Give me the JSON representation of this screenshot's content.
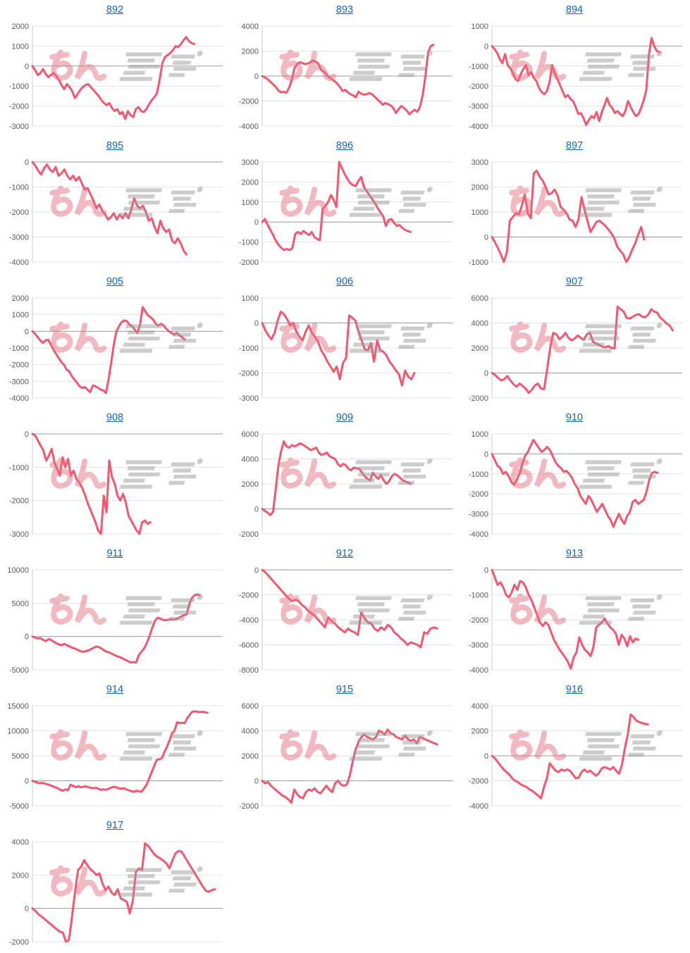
{
  "page": {
    "background": "#ffffff"
  },
  "watermark": {
    "text": "みんレポ",
    "pink_color": "#e57382",
    "gray_color": "#9b9b9b"
  },
  "styles": {
    "line_color": "#f3566e",
    "title_color": "#0e63ce",
    "grid_color": "#e2e2e2",
    "zero_color": "#9a9a9a",
    "axis_color": "#cccccc",
    "tick_color": "#595959"
  },
  "chart_data": [
    {
      "type": "line",
      "title": "892",
      "ylim": [
        -3000,
        2000
      ],
      "ystep": 1000,
      "xspan": 0.85,
      "values": [
        0,
        -200,
        -450,
        -350,
        -150,
        -400,
        -550,
        -450,
        -350,
        -500,
        -700,
        -950,
        -1150,
        -900,
        -1050,
        -1250,
        -1600,
        -1400,
        -1200,
        -1050,
        -950,
        -900,
        -1050,
        -1200,
        -1350,
        -1500,
        -1700,
        -1850,
        -1950,
        -1850,
        -2100,
        -2250,
        -2150,
        -2400,
        -2300,
        -2650,
        -2250,
        -2450,
        -2550,
        -2150,
        -2050,
        -2250,
        -2300,
        -2150,
        -1900,
        -1700,
        -1550,
        -1350,
        -650,
        150,
        450,
        550,
        650,
        800,
        1000,
        950,
        1100,
        1300,
        1450,
        1250,
        1150,
        1100
      ]
    },
    {
      "type": "line",
      "title": "893",
      "ylim": [
        -4000,
        4000
      ],
      "ystep": 2000,
      "xspan": 0.9,
      "values": [
        0,
        -100,
        -250,
        -450,
        -650,
        -850,
        -1150,
        -1300,
        -1250,
        -1350,
        -950,
        -350,
        600,
        950,
        1100,
        1050,
        950,
        1000,
        1100,
        1250,
        1150,
        1000,
        500,
        350,
        150,
        -100,
        -250,
        -400,
        -600,
        -850,
        -1200,
        -1100,
        -1300,
        -1450,
        -1550,
        -1700,
        -1250,
        -1400,
        -1500,
        -1450,
        -1350,
        -1450,
        -1650,
        -1850,
        -2050,
        -2300,
        -2150,
        -2250,
        -2350,
        -2550,
        -2950,
        -2650,
        -2400,
        -2550,
        -2750,
        -3050,
        -2850,
        -2700,
        -2850,
        -2450,
        -1500,
        0,
        1900,
        2400,
        2500
      ]
    },
    {
      "type": "line",
      "title": "894",
      "ylim": [
        -4000,
        1000
      ],
      "ystep": 1000,
      "xspan": 0.88,
      "values": [
        0,
        -150,
        -350,
        -650,
        -850,
        -400,
        -950,
        -1100,
        -1350,
        -1650,
        -1750,
        -1400,
        -1150,
        -950,
        -1450,
        -1300,
        -1600,
        -1750,
        -2100,
        -2300,
        -2400,
        -2250,
        -1800,
        -950,
        -1350,
        -1650,
        -1950,
        -2250,
        -2550,
        -2450,
        -2650,
        -2750,
        -3050,
        -3400,
        -3350,
        -3600,
        -3950,
        -3700,
        -3500,
        -3600,
        -3300,
        -3750,
        -3300,
        -2950,
        -2600,
        -2950,
        -3100,
        -3350,
        -3250,
        -3400,
        -3500,
        -3250,
        -2750,
        -3050,
        -3300,
        -3500,
        -3400,
        -3100,
        -2700,
        -2200,
        -400,
        400,
        0,
        -250,
        -300
      ]
    },
    {
      "type": "line",
      "title": "895",
      "ylim": [
        -4000,
        0
      ],
      "ystep": 1000,
      "xspan": 0.81,
      "values": [
        0,
        -150,
        -350,
        -500,
        -250,
        -100,
        -300,
        -400,
        -200,
        -550,
        -450,
        -300,
        -550,
        -700,
        -550,
        -750,
        -600,
        -850,
        -1100,
        -1050,
        -1300,
        -1550,
        -1850,
        -1700,
        -1950,
        -2100,
        -2300,
        -2200,
        -2050,
        -2300,
        -2100,
        -2250,
        -2050,
        -2250,
        -1900,
        -1450,
        -1750,
        -1850,
        -1750,
        -2000,
        -2350,
        -2250,
        -2600,
        -2850,
        -2350,
        -2650,
        -2800,
        -2700,
        -3150,
        -3250,
        -3050,
        -3250,
        -3550,
        -3700
      ]
    },
    {
      "type": "line",
      "title": "896",
      "ylim": [
        -2000,
        3000
      ],
      "ystep": 1000,
      "xspan": 0.78,
      "values": [
        0,
        150,
        -150,
        -400,
        -650,
        -950,
        -1150,
        -1300,
        -1400,
        -1350,
        -1400,
        -1300,
        -600,
        -500,
        -600,
        -450,
        -550,
        -650,
        -500,
        -750,
        -850,
        -900,
        650,
        800,
        1000,
        1350,
        1100,
        750,
        3000,
        2700,
        2400,
        2150,
        1950,
        1850,
        1800,
        2050,
        2250,
        1750,
        1550,
        1350,
        1150,
        950,
        700,
        500,
        300,
        -200,
        100,
        150,
        -50,
        -200,
        -150,
        -300,
        -400,
        -450,
        -500
      ]
    },
    {
      "type": "line",
      "title": "897",
      "ylim": [
        -1000,
        3000
      ],
      "ystep": 1000,
      "xspan": 0.8,
      "values": [
        0,
        -200,
        -450,
        -700,
        -1000,
        -600,
        650,
        800,
        950,
        900,
        1250,
        1700,
        950,
        750,
        2550,
        2650,
        2400,
        2250,
        2000,
        1700,
        1750,
        1900,
        1650,
        1200,
        1100,
        950,
        700,
        650,
        400,
        700,
        1600,
        1100,
        650,
        200,
        400,
        600,
        650,
        550,
        450,
        300,
        150,
        -50,
        -400,
        -550,
        -700,
        -1000,
        -800,
        -500,
        -250,
        100,
        400,
        -100
      ]
    },
    {
      "type": "line",
      "title": "905",
      "ylim": [
        -4000,
        2000
      ],
      "ystep": 1000,
      "xspan": 0.8,
      "values": [
        0,
        -150,
        -350,
        -550,
        -700,
        -550,
        -500,
        -800,
        -1100,
        -1350,
        -1600,
        -1850,
        -2000,
        -2300,
        -2400,
        -2700,
        -2900,
        -3100,
        -3300,
        -3400,
        -3350,
        -3500,
        -3650,
        -3250,
        -3300,
        -3400,
        -3500,
        -3550,
        -3700,
        -2900,
        -1900,
        -800,
        0,
        300,
        550,
        650,
        600,
        400,
        300,
        100,
        -100,
        400,
        1450,
        1200,
        950,
        850,
        700,
        450,
        350,
        450,
        350,
        150,
        0,
        -100,
        -200,
        -100,
        -250,
        -350,
        -500
      ]
    },
    {
      "type": "line",
      "title": "906",
      "ylim": [
        -3000,
        1000
      ],
      "ystep": 1000,
      "xspan": 0.8,
      "values": [
        0,
        -300,
        -500,
        -650,
        -400,
        100,
        450,
        350,
        150,
        -100,
        0,
        -350,
        -550,
        -700,
        -350,
        -100,
        -400,
        -550,
        -750,
        -1100,
        -1300,
        -1550,
        -1750,
        -1950,
        -1750,
        -2250,
        -1600,
        -1400,
        300,
        200,
        100,
        -350,
        -700,
        -1050,
        -1100,
        -800,
        -1550,
        -700,
        -1100,
        -1150,
        -1300,
        -1550,
        -1700,
        -1900,
        -2050,
        -2500,
        -1900,
        -2150,
        -2250,
        -2000
      ]
    },
    {
      "type": "line",
      "title": "907",
      "ylim": [
        -2000,
        6000
      ],
      "ystep": 2000,
      "xspan": 0.95,
      "values": [
        0,
        -150,
        -400,
        -600,
        -500,
        -250,
        -600,
        -900,
        -1100,
        -850,
        -1050,
        -1250,
        -1600,
        -1350,
        -1000,
        -850,
        -1250,
        -1300,
        300,
        2000,
        3200,
        3100,
        2700,
        2900,
        3200,
        2800,
        2600,
        2750,
        3000,
        2800,
        2650,
        3100,
        3200,
        2500,
        2350,
        2250,
        2100,
        2050,
        2150,
        2000,
        1950,
        5300,
        5100,
        4900,
        4400,
        4350,
        4500,
        4650,
        4700,
        4500,
        4450,
        4650,
        5100,
        4900,
        4800,
        4400,
        4200,
        3950,
        3800,
        3400
      ]
    },
    {
      "type": "line",
      "title": "908",
      "ylim": [
        -3000,
        0
      ],
      "ystep": 1000,
      "xspan": 0.62,
      "values": [
        0,
        -50,
        -200,
        -350,
        -500,
        -800,
        -650,
        -450,
        -850,
        -1050,
        -1250,
        -700,
        -1000,
        -750,
        -1250,
        -1100,
        -1350,
        -1450,
        -1600,
        -1800,
        -2050,
        -2250,
        -2450,
        -2650,
        -2900,
        -3000,
        -1850,
        -2350,
        -800,
        -1300,
        -1500,
        -1850,
        -2000,
        -1800,
        -2050,
        -2450,
        -2600,
        -2750,
        -2900,
        -3000,
        -2650,
        -2600,
        -2700,
        -2650
      ]
    },
    {
      "type": "line",
      "title": "909",
      "ylim": [
        -2000,
        6000
      ],
      "ystep": 2000,
      "xspan": 0.78,
      "values": [
        0,
        -150,
        -300,
        -500,
        -250,
        1500,
        3500,
        4600,
        5400,
        5000,
        4900,
        5100,
        5000,
        5100,
        5250,
        5150,
        5000,
        4850,
        4700,
        4800,
        4900,
        4500,
        4300,
        4400,
        4500,
        4200,
        4100,
        4000,
        3600,
        3400,
        3600,
        3500,
        3200,
        3100,
        3300,
        3250,
        3200,
        2900,
        2600,
        2400,
        2300,
        2900,
        2600,
        2400,
        2700,
        2300,
        2000,
        2200,
        2600,
        2800,
        2700,
        2500,
        2300,
        2200,
        2100,
        2000
      ]
    },
    {
      "type": "line",
      "title": "910",
      "ylim": [
        -4000,
        1000
      ],
      "ystep": 1000,
      "xspan": 0.87,
      "values": [
        0,
        -300,
        -600,
        -700,
        -1000,
        -900,
        -1100,
        -1400,
        -1550,
        -1300,
        -1000,
        -500,
        -100,
        100,
        400,
        700,
        500,
        300,
        100,
        200,
        350,
        200,
        -100,
        -400,
        -600,
        -700,
        -900,
        -850,
        -1000,
        -1200,
        -1500,
        -1700,
        -2100,
        -2300,
        -2500,
        -2100,
        -2300,
        -2600,
        -2900,
        -2700,
        -2500,
        -2800,
        -3100,
        -3300,
        -3650,
        -3300,
        -3000,
        -3300,
        -3500,
        -3100,
        -2900,
        -2400,
        -2300,
        -2500,
        -2400,
        -2300,
        -1900,
        -1300,
        -950,
        -900,
        -950
      ]
    },
    {
      "type": "line",
      "title": "911",
      "ylim": [
        -5000,
        10000
      ],
      "ystep": 5000,
      "xspan": 0.88,
      "values": [
        0,
        -150,
        -300,
        -250,
        -500,
        -700,
        -400,
        -500,
        -800,
        -1000,
        -1200,
        -1300,
        -1100,
        -1300,
        -1500,
        -1700,
        -1800,
        -2000,
        -2200,
        -2300,
        -2200,
        -2100,
        -1900,
        -1700,
        -1500,
        -1600,
        -1800,
        -2100,
        -2300,
        -2400,
        -2600,
        -2800,
        -3000,
        -3100,
        -3300,
        -3500,
        -3700,
        -3900,
        -3850,
        -3900,
        -2800,
        -2300,
        -1800,
        -1000,
        0,
        1200,
        2300,
        2800,
        2700,
        2500,
        2450,
        2500,
        2600,
        2500,
        2600,
        2800,
        3000,
        3200,
        3300,
        4800,
        5800,
        6200,
        6300,
        6200
      ]
    },
    {
      "type": "line",
      "title": "912",
      "ylim": [
        -8000,
        0
      ],
      "ystep": 2000,
      "xspan": 0.92,
      "values": [
        0,
        -200,
        -500,
        -800,
        -1100,
        -1400,
        -1700,
        -2000,
        -2300,
        -2500,
        -2400,
        -2500,
        -2800,
        -3000,
        -3300,
        -3500,
        -3700,
        -4000,
        -4300,
        -4600,
        -3800,
        -4100,
        -4300,
        -4600,
        -4800,
        -5000,
        -4700,
        -4900,
        -5000,
        -5200,
        -3400,
        -3900,
        -4200,
        -4300,
        -4700,
        -4900,
        -4600,
        -4800,
        -4400,
        -4600,
        -5000,
        -5200,
        -5500,
        -5700,
        -6000,
        -5800,
        -5900,
        -6000,
        -6200,
        -5000,
        -5100,
        -4700,
        -4600,
        -4700
      ]
    },
    {
      "type": "line",
      "title": "913",
      "ylim": [
        -4000,
        0
      ],
      "ystep": 1000,
      "xspan": 0.77,
      "values": [
        0,
        -300,
        -600,
        -500,
        -700,
        -1000,
        -1100,
        -900,
        -600,
        -800,
        -450,
        -500,
        -700,
        -1000,
        -1200,
        -1500,
        -1800,
        -2100,
        -2250,
        -2100,
        -2200,
        -2500,
        -2800,
        -3000,
        -3200,
        -3350,
        -3500,
        -3700,
        -3950,
        -3500,
        -3300,
        -2700,
        -3000,
        -3200,
        -3300,
        -3450,
        -3100,
        -2300,
        -2200,
        -2100,
        -1950,
        -2150,
        -2300,
        -2400,
        -2550,
        -3000,
        -2600,
        -2750,
        -3050,
        -2650,
        -2900,
        -2750,
        -2800
      ]
    },
    {
      "type": "line",
      "title": "914",
      "ylim": [
        -5000,
        15000
      ],
      "ystep": 5000,
      "xspan": 0.92,
      "values": [
        0,
        -200,
        -400,
        -500,
        -400,
        -600,
        -700,
        -900,
        -1100,
        -1300,
        -1500,
        -1800,
        -2000,
        -1700,
        -1900,
        -800,
        -1000,
        -1300,
        -1100,
        -1300,
        -1200,
        -1100,
        -1300,
        -1400,
        -1500,
        -1400,
        -1600,
        -1800,
        -1700,
        -1800,
        -1600,
        -1400,
        -1200,
        -1300,
        -1500,
        -1600,
        -1500,
        -1700,
        -1900,
        -2100,
        -2200,
        -2000,
        -2100,
        -2200,
        -1500,
        -800,
        500,
        1700,
        3000,
        4200,
        4300,
        4500,
        5700,
        6800,
        8000,
        9500,
        10000,
        11700,
        11500,
        11600,
        11500,
        12500,
        13200,
        13800,
        13900,
        13800,
        13700,
        13800,
        13700,
        13600
      ]
    },
    {
      "type": "line",
      "title": "915",
      "ylim": [
        -2000,
        6000
      ],
      "ystep": 2000,
      "xspan": 0.92,
      "values": [
        0,
        -200,
        -100,
        -400,
        -600,
        -800,
        -1000,
        -1200,
        -1300,
        -1500,
        -1750,
        -700,
        -1100,
        -1300,
        -1400,
        -900,
        -700,
        -800,
        -600,
        -900,
        -1000,
        -700,
        -400,
        -700,
        -900,
        -200,
        0,
        -300,
        -400,
        -300,
        400,
        1500,
        2500,
        3100,
        3500,
        3700,
        3500,
        3400,
        3300,
        3500,
        4000,
        3900,
        3700,
        4100,
        3800,
        3700,
        3500,
        3400,
        3300,
        3600,
        3300,
        3200,
        3300,
        3000,
        3500,
        3400,
        3300,
        3200,
        3100,
        3000,
        2900
      ]
    },
    {
      "type": "line",
      "title": "916",
      "ylim": [
        -4000,
        4000
      ],
      "ystep": 2000,
      "xspan": 0.82,
      "values": [
        0,
        -200,
        -500,
        -800,
        -1100,
        -1300,
        -1500,
        -1800,
        -2000,
        -2100,
        -2300,
        -2400,
        -2500,
        -2700,
        -2800,
        -3000,
        -3200,
        -3400,
        -2500,
        -1800,
        -600,
        -900,
        -1200,
        -1300,
        -1100,
        -1200,
        -1100,
        -1200,
        -1500,
        -1800,
        -1750,
        -1300,
        -1100,
        -1300,
        -1200,
        -1400,
        -1600,
        -1400,
        -1000,
        -900,
        -1000,
        -1100,
        -900,
        -1200,
        -1450,
        -700,
        600,
        1700,
        3300,
        3100,
        2800,
        2700,
        2600,
        2550,
        2500
      ]
    },
    {
      "type": "line",
      "title": "917",
      "ylim": [
        -2000,
        4000
      ],
      "ystep": 2000,
      "xspan": 0.96,
      "values": [
        0,
        -150,
        -350,
        -500,
        -650,
        -800,
        -950,
        -1100,
        -1250,
        -1400,
        -1450,
        -2000,
        -1900,
        -500,
        1000,
        2300,
        2500,
        2900,
        2600,
        2350,
        2200,
        2000,
        2100,
        1500,
        1100,
        1300,
        950,
        800,
        1150,
        600,
        500,
        400,
        -300,
        500,
        2200,
        2400,
        2300,
        3900,
        3750,
        3500,
        3250,
        3100,
        3000,
        2850,
        2700,
        2400,
        2900,
        3300,
        3450,
        3400,
        3100,
        2800,
        2500,
        2200,
        1900,
        1600,
        1300,
        1050,
        1000,
        1100,
        1150
      ]
    }
  ]
}
